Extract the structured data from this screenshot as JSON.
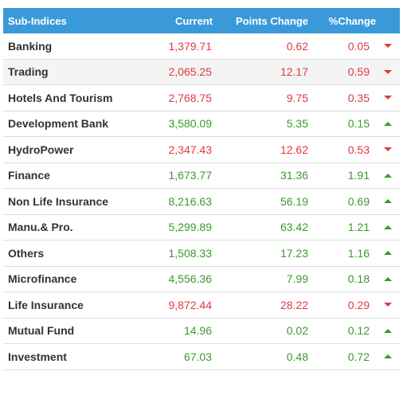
{
  "header": {
    "name": "Sub-Indices",
    "current": "Current",
    "points_change": "Points Change",
    "pct_change": "%Change"
  },
  "colors": {
    "header_bg": "#3a9ad9",
    "down": "#e0393e",
    "up": "#3a9a2a"
  },
  "rows": [
    {
      "name": "Banking",
      "current": "1,379.71",
      "points": "0.62",
      "pct": "0.05",
      "dir": "down",
      "icon": "arrow-down-icon"
    },
    {
      "name": "Trading",
      "current": "2,065.25",
      "points": "12.17",
      "pct": "0.59",
      "dir": "down",
      "icon": "arrow-down-icon"
    },
    {
      "name": "Hotels And Tourism",
      "current": "2,768.75",
      "points": "9.75",
      "pct": "0.35",
      "dir": "down",
      "icon": "arrow-down-icon"
    },
    {
      "name": "Development Bank",
      "current": "3,580.09",
      "points": "5.35",
      "pct": "0.15",
      "dir": "up",
      "icon": "arrow-up-icon"
    },
    {
      "name": "HydroPower",
      "current": "2,347.43",
      "points": "12.62",
      "pct": "0.53",
      "dir": "down",
      "icon": "arrow-down-icon"
    },
    {
      "name": "Finance",
      "current": "1,673.77",
      "points": "31.36",
      "pct": "1.91",
      "dir": "up",
      "icon": "arrow-up-icon"
    },
    {
      "name": "Non Life Insurance",
      "current": "8,216.63",
      "points": "56.19",
      "pct": "0.69",
      "dir": "up",
      "icon": "arrow-up-icon"
    },
    {
      "name": "Manu.& Pro.",
      "current": "5,299.89",
      "points": "63.42",
      "pct": "1.21",
      "dir": "up",
      "icon": "arrow-up-icon"
    },
    {
      "name": "Others",
      "current": "1,508.33",
      "points": "17.23",
      "pct": "1.16",
      "dir": "up",
      "icon": "arrow-up-icon"
    },
    {
      "name": "Microfinance",
      "current": "4,556.36",
      "points": "7.99",
      "pct": "0.18",
      "dir": "up",
      "icon": "arrow-up-icon"
    },
    {
      "name": "Life Insurance",
      "current": "9,872.44",
      "points": "28.22",
      "pct": "0.29",
      "dir": "down",
      "icon": "arrow-down-icon"
    },
    {
      "name": "Mutual Fund",
      "current": "14.96",
      "points": "0.02",
      "pct": "0.12",
      "dir": "up",
      "icon": "arrow-up-icon"
    },
    {
      "name": "Investment",
      "current": "67.03",
      "points": "0.48",
      "pct": "0.72",
      "dir": "up",
      "icon": "arrow-up-icon"
    }
  ]
}
